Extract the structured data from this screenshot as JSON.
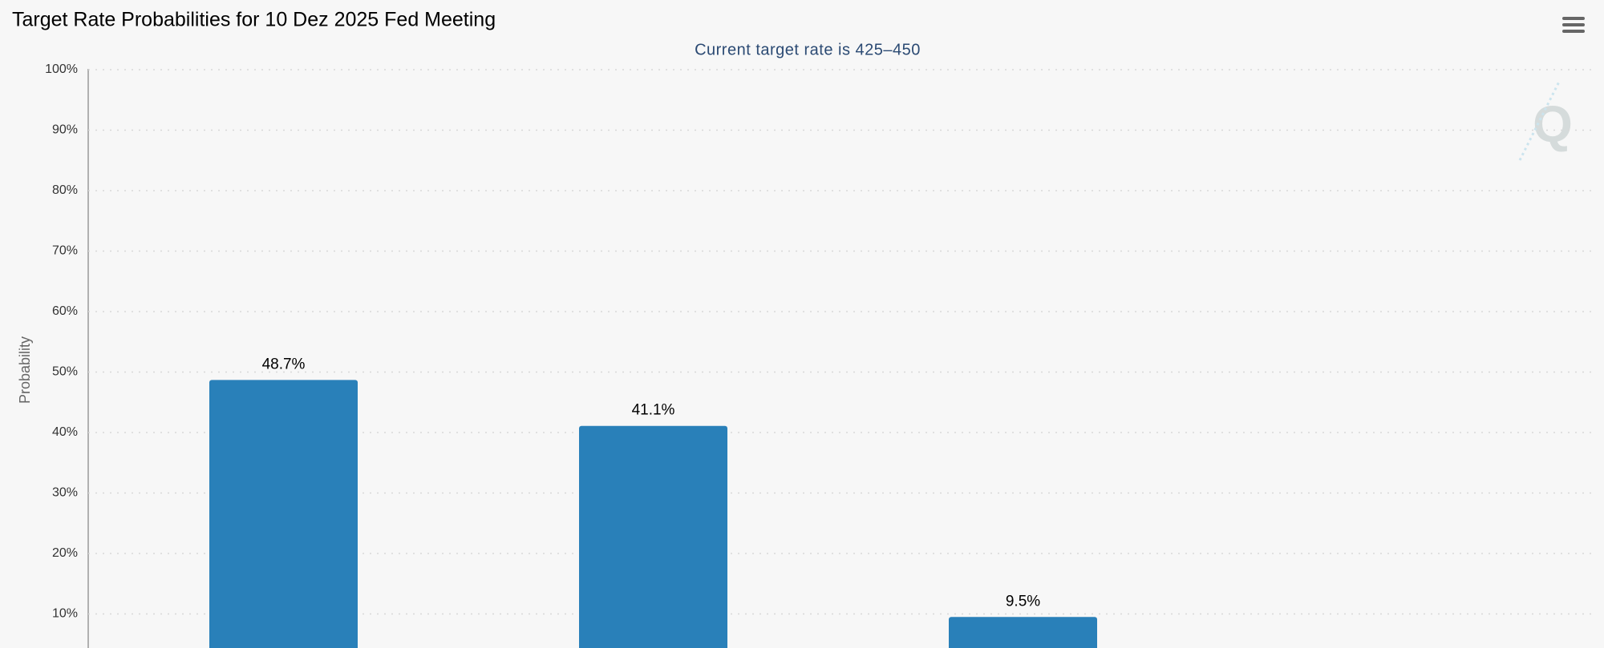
{
  "chart_data": {
    "type": "bar",
    "title": "Target Rate Probabilities for 10 Dez 2025 Fed Meeting",
    "subtitle": "Current target rate is 425–450",
    "y_label": "Probability",
    "categories": [
      null,
      null,
      null
    ],
    "values": [
      48.7,
      41.1,
      9.5
    ],
    "value_labels": [
      "48.7%",
      "41.1%",
      "9.5%"
    ],
    "color": "#2980b9",
    "ylim": [
      0,
      100
    ],
    "yticks": [
      {
        "value": 10,
        "label": "10%"
      },
      {
        "value": 20,
        "label": "20%"
      },
      {
        "value": 30,
        "label": "30%"
      },
      {
        "value": 40,
        "label": "40%"
      },
      {
        "value": 50,
        "label": "50%"
      },
      {
        "value": 60,
        "label": "60%"
      },
      {
        "value": 70,
        "label": "70%"
      },
      {
        "value": 80,
        "label": "80%"
      },
      {
        "value": 90,
        "label": "90%"
      },
      {
        "value": 100,
        "label": "100%"
      }
    ],
    "grid": true
  }
}
